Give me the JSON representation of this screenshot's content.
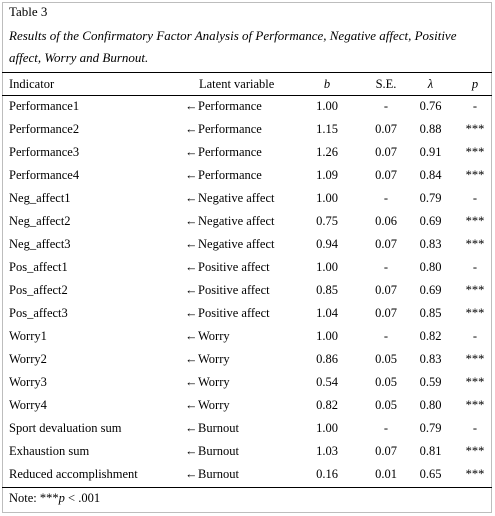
{
  "table": {
    "label": "Table 3",
    "caption": "Results of the Confirmatory Factor Analysis of Performance, Negative affect, Positive affect, Worry and Burnout.",
    "columns": {
      "indicator": "Indicator",
      "latent": "Latent variable",
      "b": "b",
      "se": "S.E.",
      "lambda": "λ",
      "p": "p"
    },
    "arrow": "←",
    "rows": [
      {
        "indicator": "Performance1",
        "latent": "Performance",
        "b": "1.00",
        "se": "-",
        "lambda": "0.76",
        "p": "-"
      },
      {
        "indicator": "Performance2",
        "latent": "Performance",
        "b": "1.15",
        "se": "0.07",
        "lambda": "0.88",
        "p": "***"
      },
      {
        "indicator": "Performance3",
        "latent": "Performance",
        "b": "1.26",
        "se": "0.07",
        "lambda": "0.91",
        "p": "***"
      },
      {
        "indicator": "Performance4",
        "latent": "Performance",
        "b": "1.09",
        "se": "0.07",
        "lambda": "0.84",
        "p": "***"
      },
      {
        "indicator": "Neg_affect1",
        "latent": "Negative affect",
        "b": "1.00",
        "se": "-",
        "lambda": "0.79",
        "p": "-"
      },
      {
        "indicator": "Neg_affect2",
        "latent": "Negative affect",
        "b": "0.75",
        "se": "0.06",
        "lambda": "0.69",
        "p": "***"
      },
      {
        "indicator": "Neg_affect3",
        "latent": "Negative affect",
        "b": "0.94",
        "se": "0.07",
        "lambda": "0.83",
        "p": "***"
      },
      {
        "indicator": "Pos_affect1",
        "latent": "Positive affect",
        "b": "1.00",
        "se": "-",
        "lambda": "0.80",
        "p": "-"
      },
      {
        "indicator": "Pos_affect2",
        "latent": "Positive affect",
        "b": "0.85",
        "se": "0.07",
        "lambda": "0.69",
        "p": "***"
      },
      {
        "indicator": "Pos_affect3",
        "latent": "Positive affect",
        "b": "1.04",
        "se": "0.07",
        "lambda": "0.85",
        "p": "***"
      },
      {
        "indicator": "Worry1",
        "latent": "Worry",
        "b": "1.00",
        "se": "-",
        "lambda": "0.82",
        "p": "-"
      },
      {
        "indicator": "Worry2",
        "latent": "Worry",
        "b": "0.86",
        "se": "0.05",
        "lambda": "0.83",
        "p": "***"
      },
      {
        "indicator": "Worry3",
        "latent": "Worry",
        "b": "0.54",
        "se": "0.05",
        "lambda": "0.59",
        "p": "***"
      },
      {
        "indicator": "Worry4",
        "latent": "Worry",
        "b": "0.82",
        "se": "0.05",
        "lambda": "0.80",
        "p": "***"
      },
      {
        "indicator": "Sport devaluation sum",
        "latent": "Burnout",
        "b": "1.00",
        "se": "-",
        "lambda": "0.79",
        "p": "-"
      },
      {
        "indicator": "Exhaustion sum",
        "latent": "Burnout",
        "b": "1.03",
        "se": "0.07",
        "lambda": "0.81",
        "p": "***"
      },
      {
        "indicator": "Reduced accomplishment",
        "latent": "Burnout",
        "b": "0.16",
        "se": "0.01",
        "lambda": "0.65",
        "p": "***"
      }
    ],
    "note": {
      "prefix": "Note:  ***",
      "p_symbol": "p",
      "suffix": " < .001"
    }
  }
}
